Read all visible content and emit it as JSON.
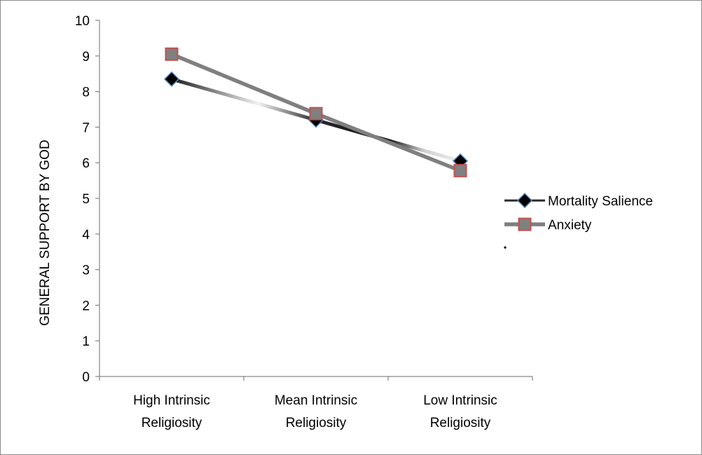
{
  "chart_data": {
    "type": "line",
    "title": "",
    "xlabel": "",
    "ylabel": "GENERAL SUPPORT BY GOD",
    "ylim": [
      0,
      10
    ],
    "yticks": [
      "0",
      "1",
      "2",
      "3",
      "4",
      "5",
      "6",
      "7",
      "8",
      "9",
      "10"
    ],
    "categories": [
      [
        "High Intrinsic",
        "Religiosity"
      ],
      [
        "Mean Intrinsic",
        "Religiosity"
      ],
      [
        "Low Intrinsic",
        "Religiosity"
      ]
    ],
    "series": [
      {
        "name": "Mortality Salience",
        "values": [
          8.35,
          7.2,
          6.05
        ],
        "marker": "diamond",
        "line_color": "#1a1a1a",
        "marker_fill": "#000000",
        "marker_stroke": "#4f81bd"
      },
      {
        "name": "Anxiety",
        "values": [
          9.05,
          7.38,
          5.78
        ],
        "marker": "square",
        "line_color": "#7f7f7f",
        "marker_fill": "#808080",
        "marker_stroke": "#c0504d"
      }
    ],
    "legend_position": "right",
    "grid": false
  }
}
